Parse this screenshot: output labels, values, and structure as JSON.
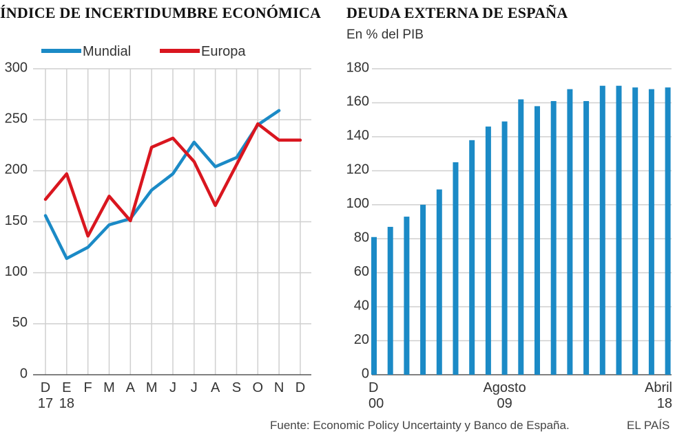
{
  "colors": {
    "mundial": "#1b8ac6",
    "europa": "#d9161f",
    "bars": "#1b8ac6",
    "grid": "#cfcfcf",
    "axis": "#555555"
  },
  "chart_data": [
    {
      "type": "line",
      "title": "ÍNDICE DE INCERTIDUMBRE ECONÓMICA",
      "x_top": [
        "D",
        "E",
        "F",
        "M",
        "A",
        "M",
        "J",
        "J",
        "A",
        "S",
        "O",
        "N",
        "D"
      ],
      "x_bottom": [
        "17",
        "18",
        "",
        "",
        "",
        "",
        "",
        "",
        "",
        "",
        "",
        "",
        ""
      ],
      "yticks": [
        "0",
        "50",
        "100",
        "150",
        "200",
        "250",
        "300"
      ],
      "ylim": [
        0,
        300
      ],
      "series": [
        {
          "name": "Mundial",
          "values": [
            156,
            114,
            125,
            147,
            153,
            181,
            197,
            228,
            204,
            213,
            245,
            259,
            null
          ]
        },
        {
          "name": "Europa",
          "values": [
            172,
            197,
            136,
            175,
            151,
            223,
            232,
            209,
            166,
            206,
            246,
            230,
            230
          ]
        }
      ]
    },
    {
      "type": "bar",
      "title": "DEUDA EXTERNA DE ESPAÑA",
      "subtitle": "En % del PIB",
      "x_labels": [
        {
          "top": "D",
          "bottom": "00",
          "index": 0
        },
        {
          "top": "Agosto",
          "bottom": "09",
          "index": 8
        },
        {
          "top": "Abril",
          "bottom": "18",
          "index": 17
        }
      ],
      "yticks": [
        "0",
        "20",
        "40",
        "60",
        "80",
        "100",
        "120",
        "140",
        "160",
        "180"
      ],
      "ylim": [
        0,
        180
      ],
      "values": [
        81,
        87,
        93,
        100,
        109,
        125,
        138,
        146,
        149,
        162,
        158,
        161,
        168,
        161,
        170,
        170,
        169,
        168,
        169
      ]
    }
  ],
  "footer": {
    "source": "Fuente: Economic Policy Uncertainty y Banco de España.",
    "brand": "EL PAÍS"
  }
}
